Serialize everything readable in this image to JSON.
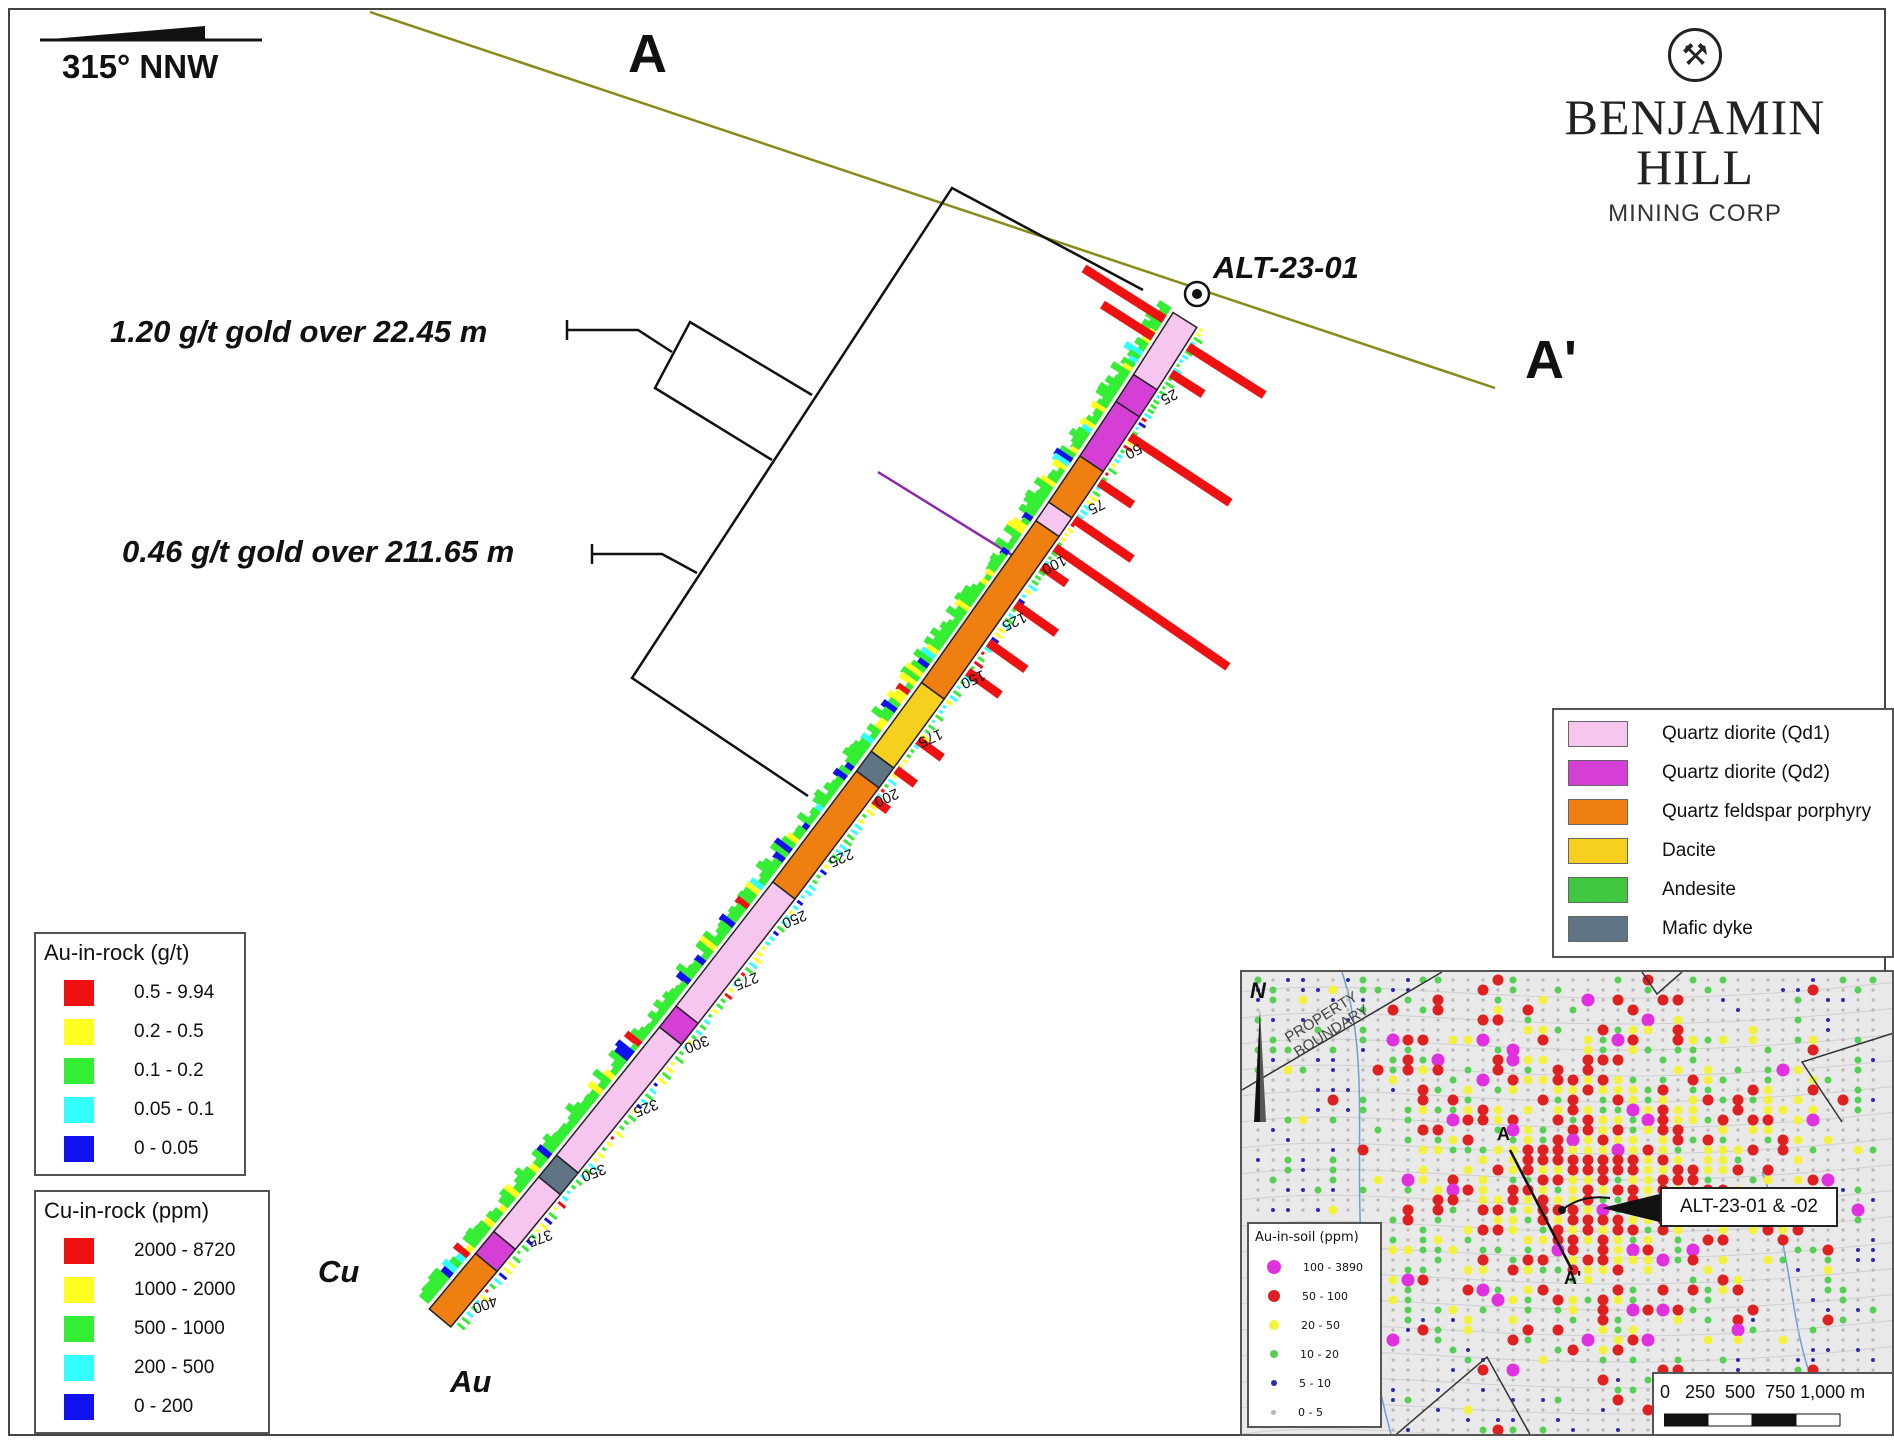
{
  "orientation": {
    "label": "315° NNW"
  },
  "section_ends": {
    "start": "A",
    "end": "A'"
  },
  "hole": {
    "id": "ALT-23-01"
  },
  "intercepts": [
    {
      "text": "1.20 g/t gold over 22.45 m"
    },
    {
      "text": "0.46 g/t gold over 211.65 m"
    }
  ],
  "trace_labels": {
    "cu": "Cu",
    "au": "Au"
  },
  "depth_ticks": [
    "25",
    "50",
    "75",
    "100",
    "125",
    "150",
    "175",
    "200",
    "225",
    "250",
    "275",
    "300",
    "325",
    "350",
    "375",
    "400"
  ],
  "logo": {
    "name": "BENJAMIN HILL",
    "sub": "MINING CORP",
    "icon": "crossed-hammers-icon"
  },
  "lithology_legend": {
    "items": [
      {
        "label": "Quartz diorite (Qd1)",
        "color": "#f7c6ef"
      },
      {
        "label": "Quartz diorite (Qd2)",
        "color": "#d63fd6"
      },
      {
        "label": "Quartz feldspar porphyry",
        "color": "#f07f12"
      },
      {
        "label": "Dacite",
        "color": "#f7cf1e"
      },
      {
        "label": "Andesite",
        "color": "#3fc73f"
      },
      {
        "label": "Mafic dyke",
        "color": "#5f7585"
      }
    ]
  },
  "au_legend": {
    "title": "Au-in-rock (g/t)",
    "items": [
      {
        "label": "0.5 - 9.94",
        "color": "#ee1111"
      },
      {
        "label": "0.2 - 0.5",
        "color": "#ffff22"
      },
      {
        "label": "0.1 - 0.2",
        "color": "#33ee33"
      },
      {
        "label": "0.05 - 0.1",
        "color": "#33ffff"
      },
      {
        "label": "0 - 0.05",
        "color": "#1111ee"
      }
    ]
  },
  "cu_legend": {
    "title": "Cu-in-rock (ppm)",
    "items": [
      {
        "label": "2000 - 8720",
        "color": "#ee1111"
      },
      {
        "label": "1000 - 2000",
        "color": "#ffff22"
      },
      {
        "label": "500 - 1000",
        "color": "#33ee33"
      },
      {
        "label": "200 - 500",
        "color": "#33ffff"
      },
      {
        "label": "0 - 200",
        "color": "#1111ee"
      }
    ]
  },
  "inset": {
    "north": "N",
    "boundary_label": "PROPERTY BOUNDARY",
    "section_a": "A",
    "section_a_prime": "A'",
    "callout": "ALT-23-01 & -02",
    "legend": {
      "title": "Au-in-soil (ppm)",
      "items": [
        {
          "label": "100 - 3890",
          "color": "#e030e0"
        },
        {
          "label": "50 - 100",
          "color": "#e02020"
        },
        {
          "label": "20 - 50",
          "color": "#f2f23a"
        },
        {
          "label": "10 - 20",
          "color": "#55d055"
        },
        {
          "label": "5 - 10",
          "color": "#2a2ab0"
        },
        {
          "label": "0 - 5",
          "color": "#b8b8b8"
        }
      ]
    },
    "scale": {
      "labels": "0   250  500  750 1,000 m"
    }
  }
}
